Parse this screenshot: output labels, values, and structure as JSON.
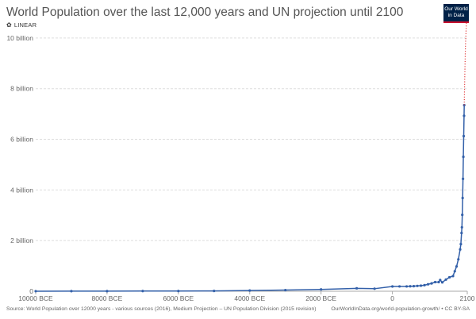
{
  "title": "World Population over the last 12,000 years and UN projection until 2100",
  "scale_toggle": {
    "label": "LINEAR",
    "icon": "gear-icon"
  },
  "logo": {
    "line1": "Our World",
    "line2": "in Data"
  },
  "footer": {
    "source": "Source: World Population over 12000 years - various sources (2016), Medium Projection – UN Population Division (2015 revision)",
    "link": "OurWorldInData.org/world-population-growth/ • CC BY-SA"
  },
  "colors": {
    "series": "#3360a9",
    "projection": "#e03a3a",
    "grid": "#dddddd",
    "axis_text": "#666666"
  },
  "chart_data": {
    "type": "line",
    "title": "World Population over the last 12,000 years and UN projection until 2100",
    "xlabel": "",
    "ylabel": "",
    "xlim": [
      -10000,
      2100
    ],
    "ylim": [
      0,
      11000000000
    ],
    "grid": true,
    "x_ticks": [
      {
        "value": -10000,
        "label": "10000 BCE"
      },
      {
        "value": -8000,
        "label": "8000 BCE"
      },
      {
        "value": -6000,
        "label": "6000 BCE"
      },
      {
        "value": -4000,
        "label": "4000 BCE"
      },
      {
        "value": -2000,
        "label": "2000 BCE"
      },
      {
        "value": 0,
        "label": "0"
      },
      {
        "value": 2100,
        "label": "2100"
      }
    ],
    "y_ticks": [
      {
        "value": 0,
        "label": "0"
      },
      {
        "value": 2000000000,
        "label": "2 billion"
      },
      {
        "value": 4000000000,
        "label": "4 billion"
      },
      {
        "value": 6000000000,
        "label": "6 billion"
      },
      {
        "value": 8000000000,
        "label": "8 billion"
      },
      {
        "value": 10000000000,
        "label": "10 billion"
      }
    ],
    "series": [
      {
        "style": "solid",
        "x": [
          -10000,
          -9000,
          -8000,
          -7000,
          -6000,
          -5000,
          -4000,
          -3000,
          -2000,
          -1000,
          -500,
          1,
          200,
          400,
          500,
          600,
          700,
          800,
          900,
          1000,
          1100,
          1200,
          1300,
          1340,
          1400,
          1500,
          1600,
          1700,
          1750,
          1800,
          1850,
          1900,
          1920,
          1940,
          1950,
          1960,
          1970,
          1980,
          1990,
          2000,
          2010,
          2015
        ],
        "values": [
          2000000,
          3000000,
          5000000,
          7000000,
          8000000,
          11000000,
          28000000,
          45000000,
          72000000,
          115000000,
          100000000,
          188000000,
          190000000,
          190000000,
          195000000,
          200000000,
          210000000,
          220000000,
          240000000,
          275000000,
          310000000,
          360000000,
          360000000,
          443000000,
          350000000,
          460000000,
          550000000,
          600000000,
          790000000,
          980000000,
          1260000000,
          1650000000,
          1860000000,
          2300000000,
          2525000000,
          3018000000,
          3682000000,
          4440000000,
          5310000000,
          6127000000,
          6930000000,
          7349000000
        ]
      },
      {
        "style": "dotted",
        "x": [
          2015,
          2030,
          2050,
          2075,
          2100
        ],
        "values": [
          7349000000,
          8500000000,
          9730000000,
          10600000000,
          11210000000
        ]
      }
    ]
  }
}
